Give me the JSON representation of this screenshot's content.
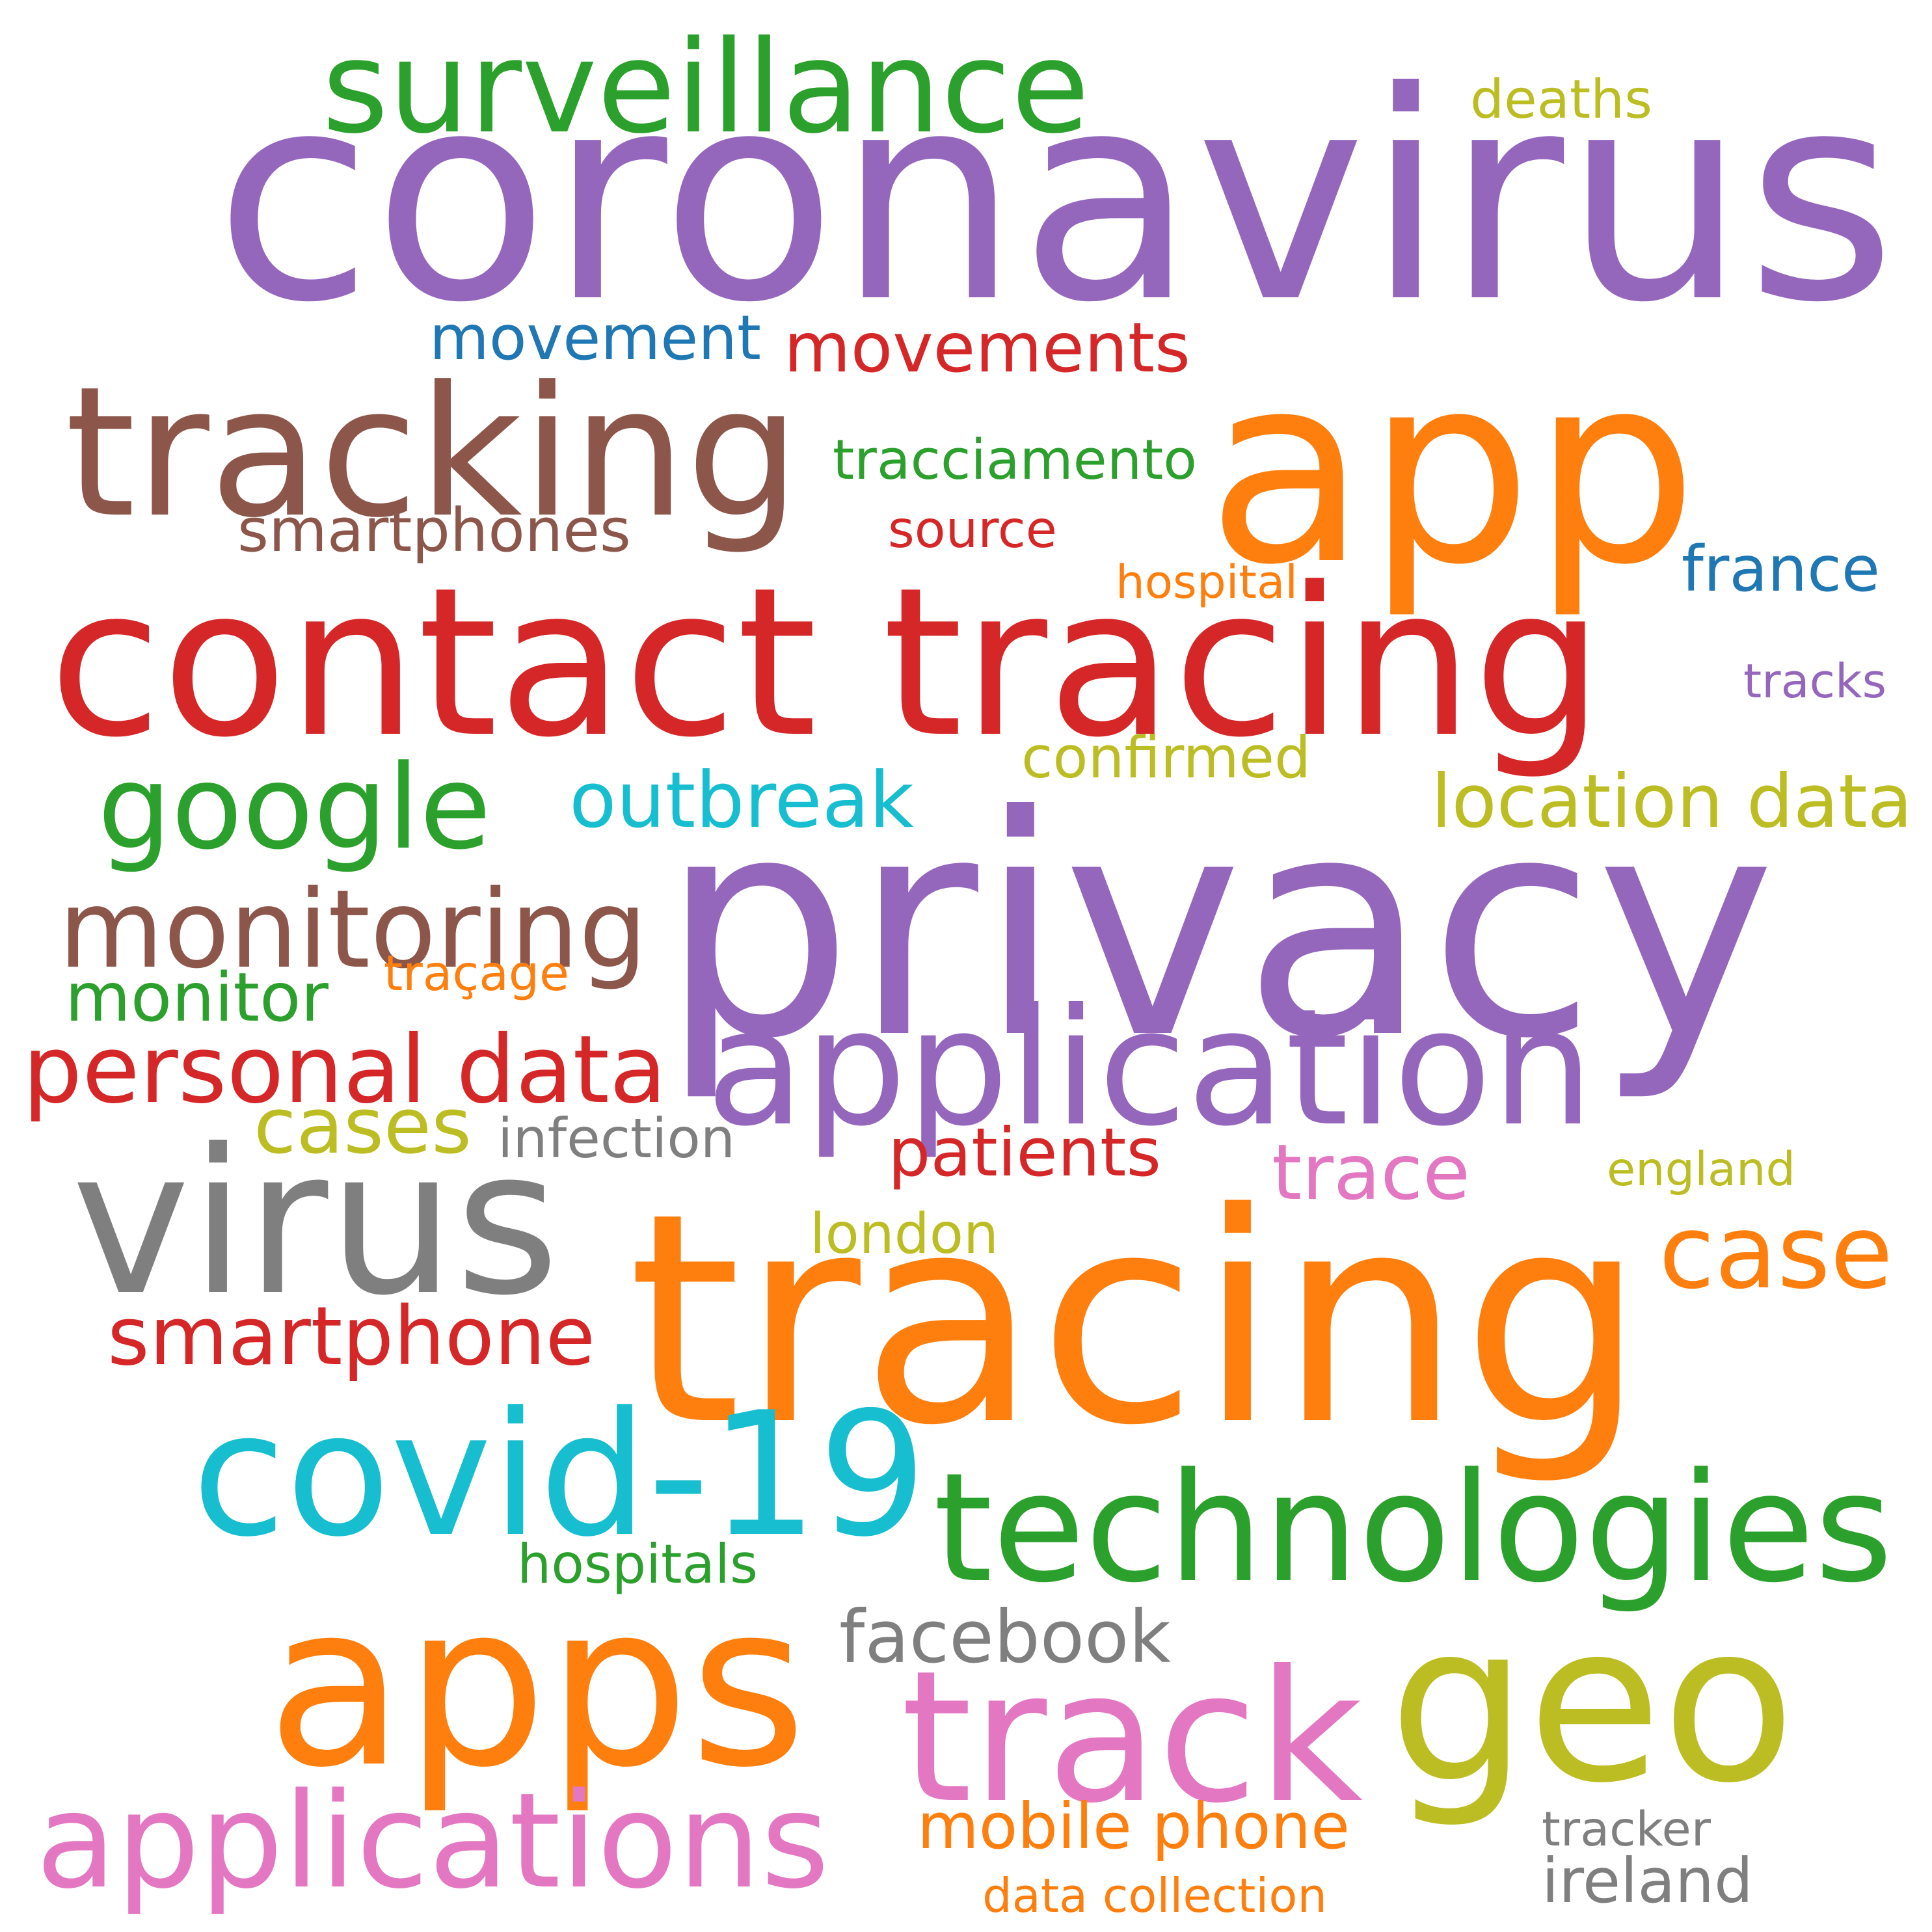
{
  "words": [
    {
      "text": "coronavirus",
      "color": "#9467bd"
    },
    {
      "text": "app",
      "color": "#ff7f0e"
    },
    {
      "text": "surveillance",
      "color": "#2ca02c"
    },
    {
      "text": "deaths",
      "color": "#bcbd22"
    },
    {
      "text": "movement",
      "color": "#1f77b4"
    },
    {
      "text": "movements",
      "color": "#d62728"
    },
    {
      "text": "tracking",
      "color": "#8c564b"
    },
    {
      "text": "tracciamento",
      "color": "#2ca02c"
    },
    {
      "text": "smartphones",
      "color": "#8c564b"
    },
    {
      "text": "source",
      "color": "#d62728"
    },
    {
      "text": "france",
      "color": "#1f77b4"
    },
    {
      "text": "hospital",
      "color": "#ff7f0e"
    },
    {
      "text": "contact tracing",
      "color": "#d62728"
    },
    {
      "text": "tracks",
      "color": "#9467bd"
    },
    {
      "text": "confirmed",
      "color": "#bcbd22"
    },
    {
      "text": "google",
      "color": "#2ca02c"
    },
    {
      "text": "outbreak",
      "color": "#17becf"
    },
    {
      "text": "location data",
      "color": "#bcbd22"
    },
    {
      "text": "privacy",
      "color": "#9467bd"
    },
    {
      "text": "monitoring",
      "color": "#8c564b"
    },
    {
      "text": "traçage",
      "color": "#ff7f0e"
    },
    {
      "text": "monitor",
      "color": "#2ca02c"
    },
    {
      "text": "application",
      "color": "#9467bd"
    },
    {
      "text": "personal data",
      "color": "#d62728"
    },
    {
      "text": "cases",
      "color": "#bcbd22"
    },
    {
      "text": "infection",
      "color": "#7f7f7f"
    },
    {
      "text": "patients",
      "color": "#d62728"
    },
    {
      "text": "trace",
      "color": "#e377c2"
    },
    {
      "text": "england",
      "color": "#bcbd22"
    },
    {
      "text": "virus",
      "color": "#7f7f7f"
    },
    {
      "text": "london",
      "color": "#bcbd22"
    },
    {
      "text": "case",
      "color": "#ff7f0e"
    },
    {
      "text": "tracing",
      "color": "#ff7f0e"
    },
    {
      "text": "smartphone",
      "color": "#d62728"
    },
    {
      "text": "covid-19",
      "color": "#17becf"
    },
    {
      "text": "technologies",
      "color": "#2ca02c"
    },
    {
      "text": "hospitals",
      "color": "#2ca02c"
    },
    {
      "text": "apps",
      "color": "#ff7f0e"
    },
    {
      "text": "facebook",
      "color": "#7f7f7f"
    },
    {
      "text": "geo",
      "color": "#bcbd22"
    },
    {
      "text": "track",
      "color": "#e377c2"
    },
    {
      "text": "applications",
      "color": "#e377c2"
    },
    {
      "text": "mobile phone",
      "color": "#ff7f0e"
    },
    {
      "text": "tracker",
      "color": "#7f7f7f"
    },
    {
      "text": "ireland",
      "color": "#7f7f7f"
    },
    {
      "text": "data collection",
      "color": "#ff7f0e"
    }
  ]
}
